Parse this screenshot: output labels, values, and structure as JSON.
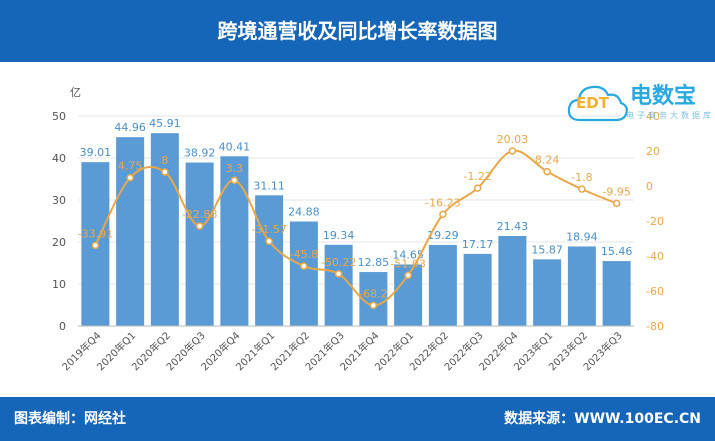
{
  "header": {
    "title": "跨境通营收及同比增长率数据图"
  },
  "footer": {
    "left": "图表编制：网经社",
    "right": "数据来源：WWW.100EC.CN"
  },
  "logo": {
    "main": "电数宝",
    "sub": "电子商务大数据库",
    "badge": "EDT"
  },
  "colors": {
    "bar": "#5b9bd5",
    "line": "#e8a84a",
    "header": "#1565b8",
    "bar_label": "#4a90c8",
    "line_label": "#e8a84a"
  },
  "chart_data": {
    "type": "bar",
    "categories": [
      "2019年Q4",
      "2020年Q1",
      "2020年Q2",
      "2020年Q3",
      "2020年Q4",
      "2021年Q1",
      "2021年Q2",
      "2021年Q3",
      "2021年Q4",
      "2022年Q1",
      "2022年Q2",
      "2022年Q3",
      "2022年Q4",
      "2023年Q1",
      "2023年Q2",
      "2023年Q3"
    ],
    "y_unit": "亿",
    "ylim": [
      0,
      50
    ],
    "yticks": [
      0,
      10,
      20,
      30,
      40,
      50
    ],
    "y2lim": [
      -80,
      40
    ],
    "y2ticks": [
      -80,
      -60,
      -40,
      -20,
      0,
      20,
      40
    ],
    "y2_top_tick_label": "40",
    "series": [
      {
        "type": "bar",
        "values": [
          39.01,
          44.96,
          45.91,
          38.92,
          40.41,
          31.11,
          24.88,
          19.34,
          12.85,
          14.65,
          19.29,
          17.17,
          21.43,
          15.87,
          18.94,
          15.46
        ]
      },
      {
        "type": "line",
        "axis": "right",
        "values": [
          -33.91,
          4.75,
          8,
          -22.88,
          3.3,
          -31.57,
          -45.8,
          -50.22,
          -68.2,
          -51.03,
          -16.23,
          -1.22,
          20.03,
          8.24,
          -1.8,
          -9.95
        ]
      }
    ],
    "grid": true
  }
}
